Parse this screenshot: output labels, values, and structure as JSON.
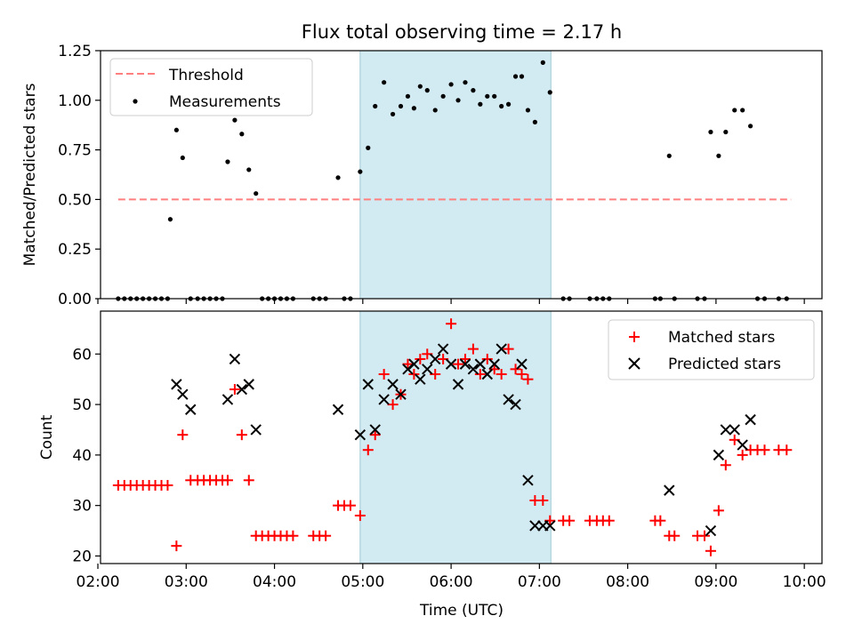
{
  "title": "Flux total observing time = 2.17 h",
  "colors": {
    "threshold": "#ff7f7f",
    "measurement": "#000000",
    "matched": "#ff0000",
    "predicted": "#000000",
    "highlight": "#add8e6"
  },
  "chart_data": [
    {
      "type": "scatter",
      "name": "ratio-panel",
      "ylabel": "Matched/Predicted stars",
      "xlim": [
        2.03,
        10.2
      ],
      "ylim": [
        0,
        1.25
      ],
      "yticks": [
        "0.00",
        "0.25",
        "0.50",
        "0.75",
        "1.00",
        "1.25"
      ],
      "yticks_values": [
        0,
        0.25,
        0.5,
        0.75,
        1.0,
        1.25
      ],
      "xticks_values": [
        2,
        3,
        4,
        5,
        6,
        7,
        8,
        9,
        10
      ],
      "highlight_span": [
        4.97,
        7.13
      ],
      "legend": {
        "placement": "upper-left",
        "entries": [
          "Threshold",
          "Measurements"
        ]
      },
      "threshold": {
        "name": "Threshold",
        "x": [
          2.23,
          9.85
        ],
        "y": 0.5
      },
      "series": [
        {
          "name": "Measurements",
          "x": [
            2.23,
            2.3,
            2.37,
            2.44,
            2.51,
            2.58,
            2.65,
            2.72,
            2.79,
            2.82,
            2.89,
            2.96,
            3.05,
            3.13,
            3.2,
            3.27,
            3.34,
            3.41,
            3.47,
            3.55,
            3.63,
            3.71,
            3.79,
            3.86,
            3.93,
            4.0,
            4.07,
            4.14,
            4.21,
            4.44,
            4.51,
            4.58,
            4.72,
            4.79,
            4.86,
            4.97,
            5.06,
            5.14,
            5.24,
            5.34,
            5.43,
            5.51,
            5.58,
            5.65,
            5.73,
            5.82,
            5.91,
            6.0,
            6.08,
            6.16,
            6.25,
            6.33,
            6.41,
            6.49,
            6.57,
            6.65,
            6.73,
            6.8,
            6.87,
            6.95,
            7.04,
            7.12,
            7.27,
            7.34,
            7.57,
            7.65,
            7.72,
            7.79,
            8.31,
            8.37,
            8.47,
            8.53,
            8.79,
            8.87,
            8.94,
            9.03,
            9.11,
            9.21,
            9.3,
            9.39,
            9.47,
            9.55,
            9.71,
            9.8
          ],
          "y": [
            0,
            0,
            0,
            0,
            0,
            0,
            0,
            0,
            0,
            0.4,
            0.85,
            0.71,
            0,
            0,
            0,
            0,
            0,
            0,
            0.69,
            0.9,
            0.83,
            0.65,
            0.53,
            0,
            0,
            0,
            0,
            0,
            0,
            0,
            0,
            0,
            0.61,
            0,
            0,
            0.64,
            0.76,
            0.97,
            1.09,
            0.93,
            0.97,
            1.02,
            0.96,
            1.07,
            1.05,
            0.95,
            1.02,
            1.08,
            1.0,
            1.09,
            1.05,
            0.98,
            1.02,
            1.02,
            0.97,
            0.98,
            1.12,
            1.12,
            0.95,
            0.89,
            1.19,
            1.04,
            0,
            0,
            0,
            0,
            0,
            0,
            0,
            0,
            0.72,
            0,
            0,
            0,
            0.84,
            0.72,
            0.84,
            0.95,
            0.95,
            0.87,
            0,
            0,
            0,
            0
          ]
        }
      ]
    },
    {
      "type": "scatter",
      "name": "count-panel",
      "xlabel": "Time (UTC)",
      "ylabel": "Count",
      "xlim": [
        2.03,
        10.2
      ],
      "ylim": [
        18.5,
        68.5
      ],
      "yticks": [
        "20",
        "30",
        "40",
        "50",
        "60"
      ],
      "yticks_values": [
        20,
        30,
        40,
        50,
        60
      ],
      "xticks": [
        "02:00",
        "03:00",
        "04:00",
        "05:00",
        "06:00",
        "07:00",
        "08:00",
        "09:00",
        "10:00"
      ],
      "xticks_values": [
        2,
        3,
        4,
        5,
        6,
        7,
        8,
        9,
        10
      ],
      "highlight_span": [
        4.97,
        7.13
      ],
      "legend": {
        "placement": "upper-right",
        "entries": [
          "Matched stars",
          "Predicted stars"
        ]
      },
      "series": [
        {
          "name": "Matched stars",
          "marker": "plus",
          "x": [
            2.23,
            2.3,
            2.37,
            2.44,
            2.51,
            2.58,
            2.65,
            2.72,
            2.79,
            2.89,
            2.96,
            3.05,
            3.13,
            3.2,
            3.27,
            3.34,
            3.41,
            3.47,
            3.55,
            3.63,
            3.71,
            3.79,
            3.86,
            3.93,
            4.0,
            4.07,
            4.14,
            4.21,
            4.44,
            4.51,
            4.58,
            4.72,
            4.79,
            4.86,
            4.97,
            5.06,
            5.14,
            5.24,
            5.34,
            5.43,
            5.51,
            5.58,
            5.65,
            5.73,
            5.82,
            5.91,
            6.0,
            6.08,
            6.16,
            6.25,
            6.33,
            6.41,
            6.49,
            6.57,
            6.65,
            6.73,
            6.8,
            6.87,
            6.95,
            7.04,
            7.12,
            7.27,
            7.34,
            7.57,
            7.65,
            7.72,
            7.79,
            8.31,
            8.37,
            8.47,
            8.53,
            8.79,
            8.87,
            8.94,
            9.03,
            9.11,
            9.21,
            9.3,
            9.39,
            9.47,
            9.55,
            9.71,
            9.8
          ],
          "y": [
            34,
            34,
            34,
            34,
            34,
            34,
            34,
            34,
            34,
            22,
            44,
            35,
            35,
            35,
            35,
            35,
            35,
            35,
            53,
            44,
            35,
            24,
            24,
            24,
            24,
            24,
            24,
            24,
            24,
            24,
            24,
            30,
            30,
            30,
            28,
            41,
            44,
            56,
            50,
            52,
            58,
            56,
            59,
            60,
            56,
            59,
            66,
            58,
            59,
            61,
            56,
            59,
            57,
            56,
            61,
            57,
            56,
            55,
            31,
            31,
            27,
            27,
            27,
            27,
            27,
            27,
            27,
            27,
            27,
            24,
            24,
            24,
            24,
            21,
            29,
            38,
            43,
            40,
            41,
            41,
            41,
            41,
            41
          ]
        },
        {
          "name": "Predicted stars",
          "marker": "x",
          "x": [
            2.89,
            2.96,
            3.05,
            3.47,
            3.55,
            3.63,
            3.71,
            3.79,
            4.72,
            4.97,
            5.06,
            5.14,
            5.24,
            5.34,
            5.43,
            5.51,
            5.58,
            5.65,
            5.73,
            5.82,
            5.91,
            6.0,
            6.08,
            6.16,
            6.25,
            6.33,
            6.41,
            6.49,
            6.57,
            6.65,
            6.73,
            6.8,
            6.87,
            6.95,
            7.04,
            7.12,
            8.47,
            8.94,
            9.03,
            9.11,
            9.21,
            9.3,
            9.39
          ],
          "y": [
            54,
            52,
            49,
            51,
            59,
            53,
            54,
            45,
            49,
            44,
            54,
            45,
            51,
            54,
            52,
            57,
            58,
            55,
            57,
            59,
            61,
            58,
            54,
            58,
            57,
            58,
            56,
            58,
            61,
            51,
            50,
            58,
            35,
            26,
            26,
            26,
            33,
            25,
            40,
            45,
            45,
            42,
            47
          ]
        }
      ]
    }
  ]
}
